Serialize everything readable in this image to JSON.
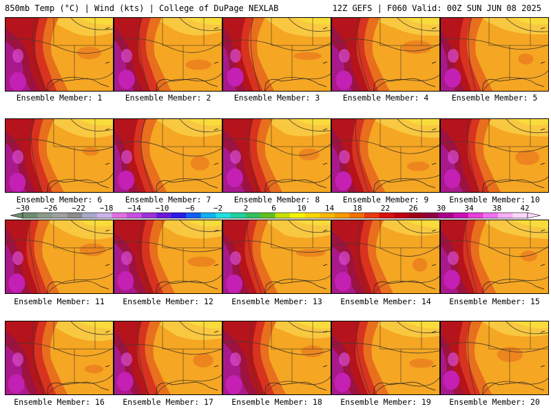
{
  "header": {
    "left": "850mb Temp (°C) | Wind (kts) | College of DuPage NEXLAB",
    "right": "12Z GEFS | F060 Valid: 00Z SUN JUN 08 2025"
  },
  "member_prefix": "Ensemble Member: ",
  "members": [
    "1",
    "2",
    "3",
    "4",
    "5",
    "6",
    "7",
    "8",
    "9",
    "10",
    "11",
    "12",
    "13",
    "14",
    "15",
    "16",
    "17",
    "18",
    "19",
    "20"
  ],
  "colorbar": {
    "tick_labels": [
      "-30",
      "-26",
      "-22",
      "-18",
      "-14",
      "-10",
      "-6",
      "-2",
      "2",
      "6",
      "10",
      "14",
      "18",
      "22",
      "26",
      "30",
      "34",
      "38",
      "42"
    ],
    "colors": [
      "#6e8c6e",
      "#8c9c8c",
      "#a0a0a0",
      "#8c8c8c",
      "#a8a8c8",
      "#c8b4e8",
      "#e070e0",
      "#c850e0",
      "#9a32d8",
      "#6a1ad8",
      "#2a1ae8",
      "#1060f0",
      "#10b0f0",
      "#20e0e0",
      "#20d0a0",
      "#30c060",
      "#60c020",
      "#c8e000",
      "#f4f400",
      "#f8d800",
      "#f8b800",
      "#f89a00",
      "#f07000",
      "#e83a10",
      "#d81010",
      "#c00010",
      "#a00018",
      "#900040",
      "#a8008c",
      "#c810b4",
      "#e840d8",
      "#f070f0",
      "#f8b0f8",
      "#fcd8fc"
    ]
  },
  "map_palette": {
    "background": "#f5a623",
    "shades": [
      "#f8c840",
      "#f9dc3c",
      "#e86f1d",
      "#d8331f",
      "#b5141c",
      "#9c1240",
      "#a81a8c",
      "#c420b4",
      "#d84bd2"
    ],
    "contour": "#4a3a2a"
  }
}
